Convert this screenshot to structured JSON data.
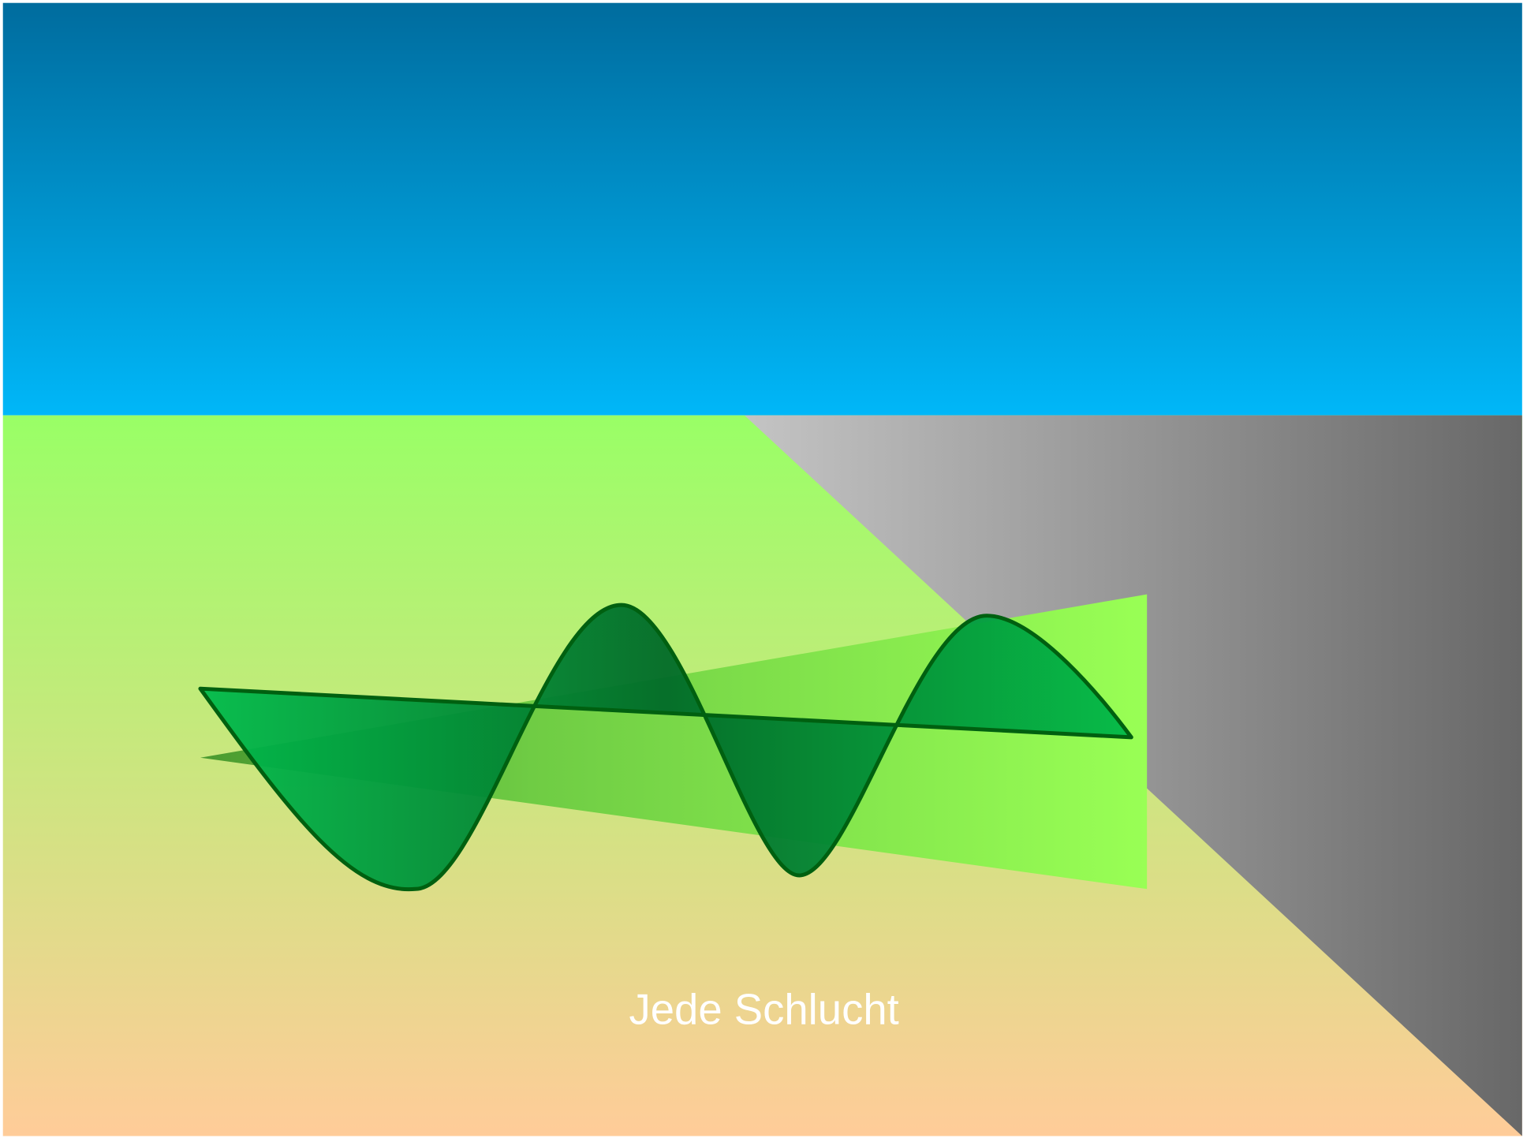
{
  "caption": "Jede Schlucht"
}
